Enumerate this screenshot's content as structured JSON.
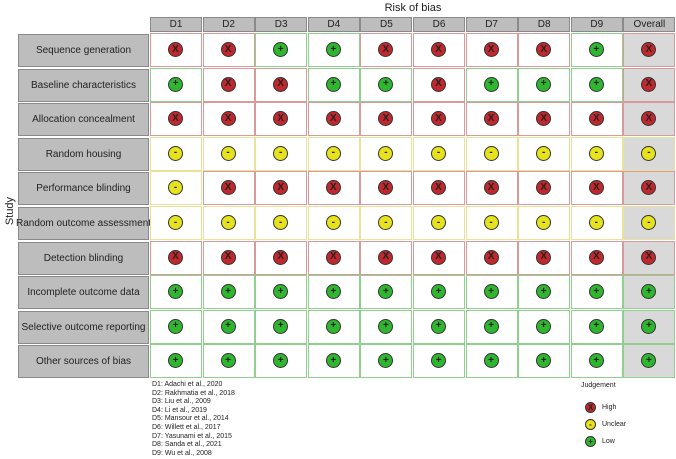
{
  "chart_data": {
    "type": "table",
    "title": "Risk of bias",
    "ylabel": "Study",
    "columns": [
      "D1",
      "D2",
      "D3",
      "D4",
      "D5",
      "D6",
      "D7",
      "D8",
      "D9",
      "Overall"
    ],
    "rows": [
      {
        "label": "Sequence generation",
        "values": [
          "High",
          "High",
          "Low",
          "Low",
          "High",
          "High",
          "High",
          "High",
          "Low",
          "High"
        ]
      },
      {
        "label": "Baseline characteristics",
        "values": [
          "Low",
          "High",
          "High",
          "Low",
          "Low",
          "High",
          "Low",
          "Low",
          "Low",
          "High"
        ]
      },
      {
        "label": "Allocation concealment",
        "values": [
          "High",
          "High",
          "High",
          "High",
          "High",
          "High",
          "High",
          "High",
          "High",
          "High"
        ]
      },
      {
        "label": "Random housing",
        "values": [
          "Unclear",
          "Unclear",
          "Unclear",
          "Unclear",
          "Unclear",
          "Unclear",
          "Unclear",
          "Unclear",
          "Unclear",
          "Unclear"
        ]
      },
      {
        "label": "Performance blinding",
        "values": [
          "Unclear",
          "High",
          "High",
          "High",
          "High",
          "High",
          "High",
          "High",
          "High",
          "High"
        ]
      },
      {
        "label": "Random outcome assessment",
        "values": [
          "Unclear",
          "Unclear",
          "Unclear",
          "Unclear",
          "Unclear",
          "Unclear",
          "Unclear",
          "Unclear",
          "Unclear",
          "Unclear"
        ]
      },
      {
        "label": "Detection blinding",
        "values": [
          "High",
          "High",
          "High",
          "High",
          "High",
          "High",
          "High",
          "High",
          "High",
          "High"
        ]
      },
      {
        "label": "Incomplete outcome data",
        "values": [
          "Low",
          "Low",
          "Low",
          "Low",
          "Low",
          "Low",
          "Low",
          "Low",
          "Low",
          "Low"
        ]
      },
      {
        "label": "Selective outcome reporting",
        "values": [
          "Low",
          "Low",
          "Low",
          "Low",
          "Low",
          "Low",
          "Low",
          "Low",
          "Low",
          "Low"
        ]
      },
      {
        "label": "Other sources of bias",
        "values": [
          "Low",
          "Low",
          "Low",
          "Low",
          "Low",
          "Low",
          "Low",
          "Low",
          "Low",
          "Low"
        ]
      }
    ],
    "studies": [
      "D1: Adachi et al., 2020",
      "D2: Rakhmatia et al., 2018",
      "D3: Liu et al., 2009",
      "D4: Li et al., 2019",
      "D5: Mansour et al., 2014",
      "D6: Willett et al., 2017",
      "D7: Yasunami et al., 2015",
      "D8: Sanda et al., 2021",
      "D9: Wu et al., 2008"
    ],
    "legend": {
      "title": "Judgement",
      "items": [
        {
          "label": "High",
          "symbol": "X",
          "color": "#c0282d"
        },
        {
          "label": "Unclear",
          "symbol": "-",
          "color": "#e6e21d"
        },
        {
          "label": "Low",
          "symbol": "+",
          "color": "#2fb62f"
        }
      ]
    }
  }
}
